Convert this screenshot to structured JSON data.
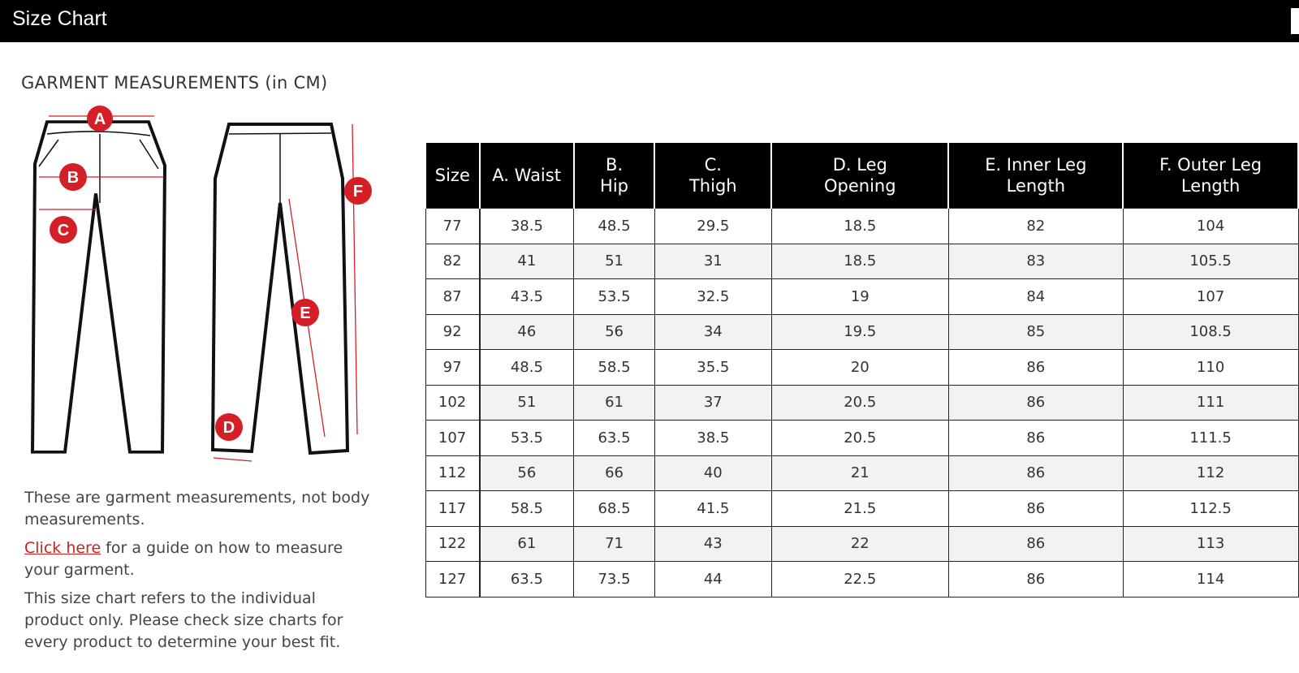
{
  "window": {
    "title": "Size Chart"
  },
  "heading": "GARMENT MEASUREMENTS (in CM)",
  "diagram": {
    "labels": [
      "A",
      "B",
      "C",
      "D",
      "E",
      "F"
    ],
    "accent": "#d41f26"
  },
  "notes": {
    "p1": "These are garment measurements, not body measurements.",
    "link": "Click here",
    "p2_rest": " for a guide on how to measure your garment.",
    "p3": "This size chart refers to the individual product only. Please check size charts for every product to determine your best fit."
  },
  "table": {
    "headers": [
      "Size",
      "A. Waist",
      "B. Hip",
      "C. Thigh",
      "D. Leg Opening",
      "E. Inner Leg Length",
      "F. Outer Leg Length"
    ],
    "rows": [
      [
        "77",
        "38.5",
        "48.5",
        "29.5",
        "18.5",
        "82",
        "104"
      ],
      [
        "82",
        "41",
        "51",
        "31",
        "18.5",
        "83",
        "105.5"
      ],
      [
        "87",
        "43.5",
        "53.5",
        "32.5",
        "19",
        "84",
        "107"
      ],
      [
        "92",
        "46",
        "56",
        "34",
        "19.5",
        "85",
        "108.5"
      ],
      [
        "97",
        "48.5",
        "58.5",
        "35.5",
        "20",
        "86",
        "110"
      ],
      [
        "102",
        "51",
        "61",
        "37",
        "20.5",
        "86",
        "111"
      ],
      [
        "107",
        "53.5",
        "63.5",
        "38.5",
        "20.5",
        "86",
        "111.5"
      ],
      [
        "112",
        "56",
        "66",
        "40",
        "21",
        "86",
        "112"
      ],
      [
        "117",
        "58.5",
        "68.5",
        "41.5",
        "21.5",
        "86",
        "112.5"
      ],
      [
        "122",
        "61",
        "71",
        "43",
        "22",
        "86",
        "113"
      ],
      [
        "127",
        "63.5",
        "73.5",
        "44",
        "22.5",
        "86",
        "114"
      ]
    ]
  }
}
